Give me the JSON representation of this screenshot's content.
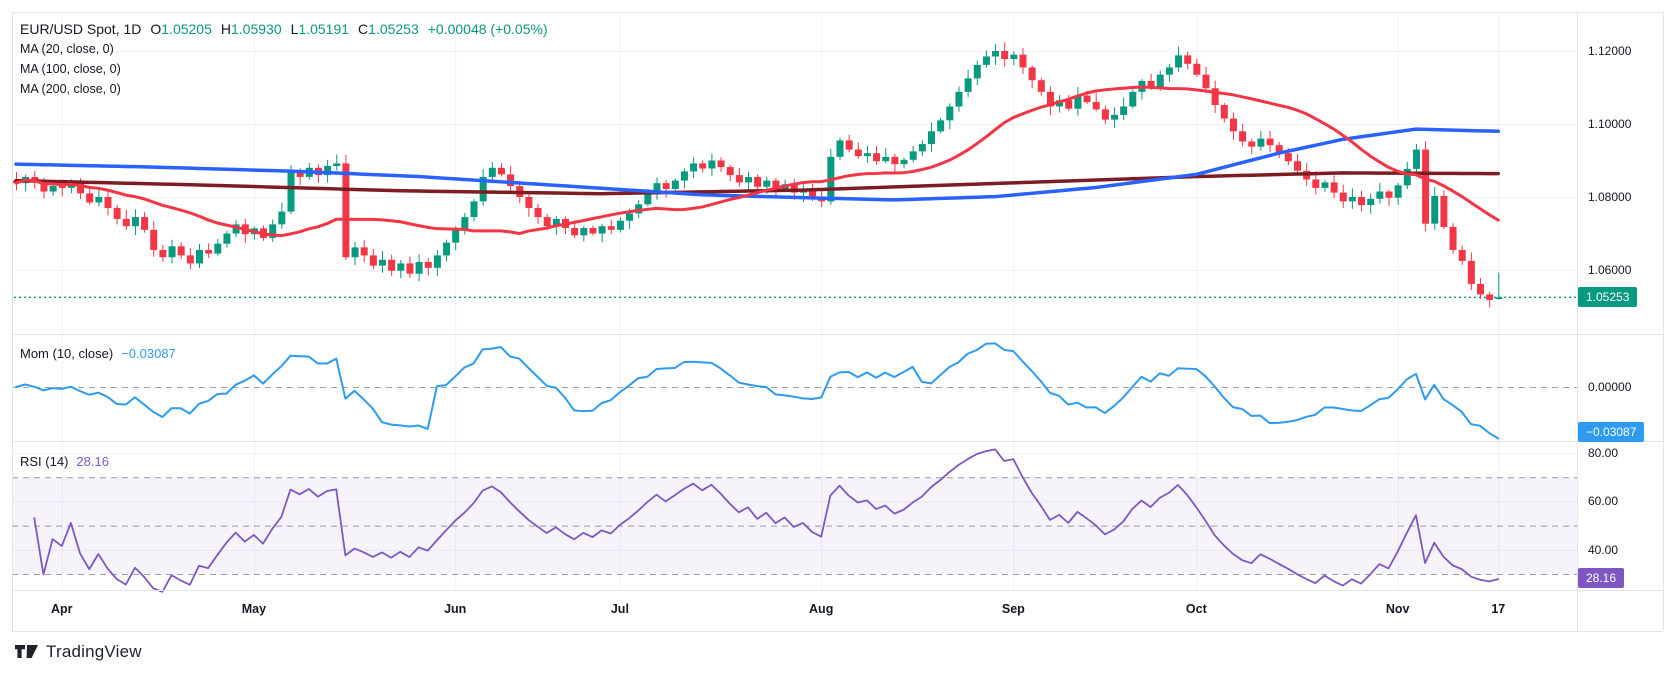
{
  "header": {
    "symbol": "EUR/USD Spot, 1D",
    "ohlc": {
      "o_label": "O",
      "o": "1.05205",
      "h_label": "H",
      "h": "1.05930",
      "l_label": "L",
      "l": "1.05191",
      "c_label": "C",
      "c": "1.05253",
      "change": "+0.00048 (+0.05%)"
    },
    "ma_labels": [
      "MA (20, close, 0)",
      "MA (100, close, 0)",
      "MA (200, close, 0)"
    ]
  },
  "panes": {
    "momentum": {
      "label": "Mom (10, close)",
      "value": "−0.03087",
      "badge": "−0.03087"
    },
    "rsi": {
      "label": "RSI (14)",
      "value": "28.16",
      "badge": "28.16"
    }
  },
  "price_axis": {
    "badge": "1.05253",
    "ticks": [
      {
        "label": "1.12000",
        "price": 1.12
      },
      {
        "label": "1.10000",
        "price": 1.1
      },
      {
        "label": "1.08000",
        "price": 1.08
      },
      {
        "label": "1.06000",
        "price": 1.06
      }
    ]
  },
  "mom_axis": {
    "zero_label": "0.00000"
  },
  "rsi_axis": {
    "ticks": [
      {
        "label": "80.00",
        "value": 80
      },
      {
        "label": "60.00",
        "value": 60
      },
      {
        "label": "40.00",
        "value": 40
      }
    ]
  },
  "time_axis": {
    "labels": [
      "Apr",
      "May",
      "Jun",
      "Jul",
      "Aug",
      "Sep",
      "Oct",
      "Nov",
      "17"
    ]
  },
  "watermark": "TradingView",
  "colors": {
    "up": "#089981",
    "down": "#F23645",
    "ma20": "#F23645",
    "ma100": "#2962FF",
    "ma200": "#7E1C24",
    "mom": "#2D9BF0",
    "rsi": "#7E57C2",
    "grid": "#F0F2F7",
    "border": "#E1E4EC",
    "rsi_band": "rgba(126,87,194,0.07)",
    "dashed": "rgba(75,80,92,0.55)",
    "last_price": "#089981"
  },
  "chart_data": {
    "type": "candlestick",
    "title": "EUR/USD Spot, 1D",
    "legend_last_bar": {
      "open": 1.05205,
      "high": 1.0593,
      "low": 1.05191,
      "close": 1.05253,
      "change": 0.00048,
      "change_pct": 0.05
    },
    "price_ticks": [
      1.12,
      1.1,
      1.08,
      1.06
    ],
    "ylim_main": [
      1.0475,
      1.1305
    ],
    "closes": [
      1.0838,
      1.0855,
      1.084,
      1.0815,
      1.083,
      1.0825,
      1.084,
      1.081,
      1.0785,
      1.08,
      1.077,
      1.074,
      1.072,
      1.0745,
      1.071,
      1.0655,
      1.0635,
      1.0665,
      1.064,
      1.0618,
      1.0655,
      1.0645,
      1.0672,
      1.07,
      1.0725,
      1.0698,
      1.0714,
      1.0688,
      1.0725,
      1.076,
      1.0868,
      1.0855,
      1.088,
      1.086,
      1.0885,
      1.0892,
      1.0635,
      1.0662,
      1.064,
      1.0612,
      1.0628,
      1.0598,
      1.0618,
      1.059,
      1.0622,
      1.0606,
      1.064,
      1.0675,
      1.0712,
      1.0745,
      1.0788,
      1.0855,
      1.088,
      1.0862,
      1.083,
      1.08,
      1.077,
      1.0745,
      1.072,
      1.074,
      1.0715,
      1.0695,
      1.0715,
      1.07,
      1.072,
      1.071,
      1.0735,
      1.0755,
      1.078,
      1.081,
      1.0838,
      1.0822,
      1.0845,
      1.087,
      1.0892,
      1.0878,
      1.09,
      1.0882,
      1.086,
      1.084,
      1.0855,
      1.0828,
      1.0845,
      1.082,
      1.0835,
      1.0812,
      1.0822,
      1.08,
      1.0788,
      1.091,
      1.0955,
      1.093,
      1.0912,
      1.092,
      1.0898,
      1.091,
      1.089,
      1.0902,
      1.0925,
      1.0945,
      1.098,
      1.101,
      1.1048,
      1.1088,
      1.1125,
      1.1162,
      1.1185,
      1.12,
      1.1178,
      1.119,
      1.1155,
      1.112,
      1.1088,
      1.1048,
      1.1065,
      1.1042,
      1.1078,
      1.106,
      1.104,
      1.1012,
      1.1025,
      1.1048,
      1.1088,
      1.1118,
      1.1102,
      1.1135,
      1.1155,
      1.1188,
      1.1165,
      1.1135,
      1.1098,
      1.1052,
      1.1015,
      1.098,
      1.0952,
      1.0938,
      1.096,
      1.0942,
      1.092,
      1.0898,
      1.0872,
      1.0848,
      1.0825,
      1.084,
      1.0812,
      1.0788,
      1.08,
      1.0778,
      1.0795,
      1.0815,
      1.0798,
      1.0832,
      1.0877,
      1.093,
      1.0727,
      1.0803,
      1.0718,
      1.0655,
      1.0625,
      1.0562,
      1.0533,
      1.0518,
      1.05253
    ],
    "first_open": 1.0845,
    "months": [
      {
        "label": "Apr",
        "bar": 5
      },
      {
        "label": "May",
        "bar": 26
      },
      {
        "label": "Jun",
        "bar": 48
      },
      {
        "label": "Jul",
        "bar": 66
      },
      {
        "label": "Aug",
        "bar": 88
      },
      {
        "label": "Sep",
        "bar": 109
      },
      {
        "label": "Oct",
        "bar": 129
      },
      {
        "label": "Nov",
        "bar": 151
      },
      {
        "label": "17",
        "bar": 162
      }
    ],
    "overlays": {
      "ma20": {
        "period": 20
      },
      "ma100_points": [
        [
          0,
          1.089
        ],
        [
          15,
          1.0882
        ],
        [
          31,
          1.087
        ],
        [
          44,
          1.0856
        ],
        [
          59,
          1.0832
        ],
        [
          75,
          1.0806
        ],
        [
          88,
          1.0797
        ],
        [
          96,
          1.0792
        ],
        [
          107,
          1.0801
        ],
        [
          118,
          1.0826
        ],
        [
          129,
          1.0862
        ],
        [
          138,
          1.092
        ],
        [
          145,
          1.0958
        ],
        [
          153,
          1.0986
        ],
        [
          162,
          1.098
        ]
      ],
      "ma200_points": [
        [
          0,
          1.0845
        ],
        [
          20,
          1.0833
        ],
        [
          42,
          1.0817
        ],
        [
          64,
          1.0809
        ],
        [
          86,
          1.0819
        ],
        [
          107,
          1.0837
        ],
        [
          129,
          1.0856
        ],
        [
          145,
          1.0866
        ],
        [
          162,
          1.0864
        ]
      ]
    },
    "momentum": {
      "period": 10,
      "last": -0.03087,
      "zero_line": 0
    },
    "rsi": {
      "period": 14,
      "last": 28.16,
      "levels": [
        70,
        50,
        30
      ],
      "ticks": [
        80,
        60,
        40
      ]
    },
    "last_price_line": 1.05253
  }
}
